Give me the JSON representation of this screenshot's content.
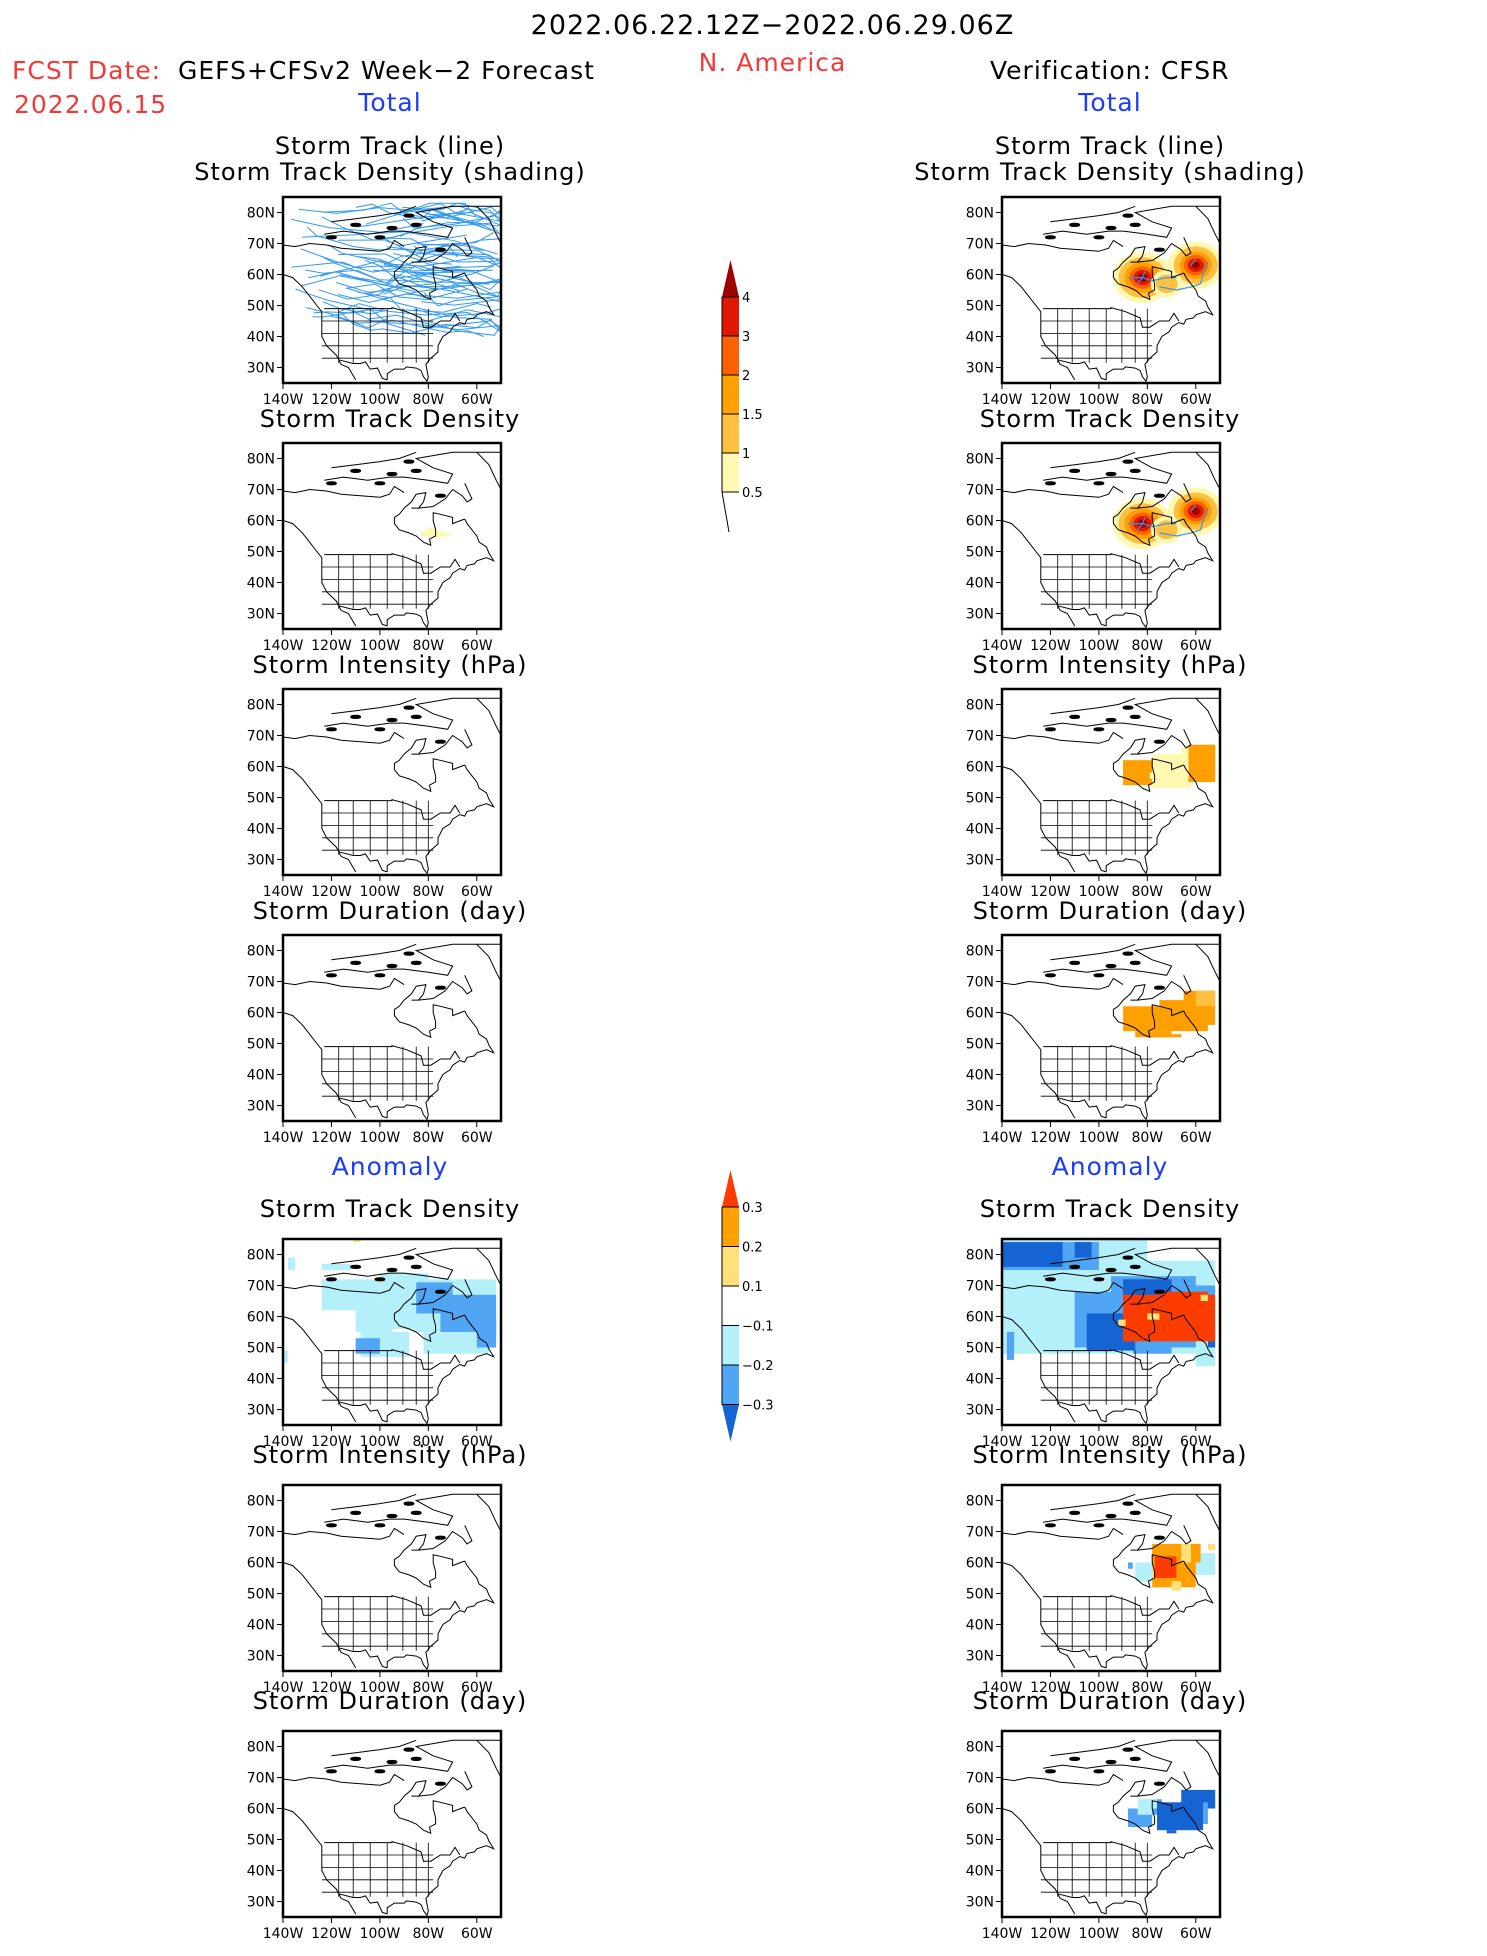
{
  "header": {
    "title": "2022.06.22.12Z−2022.06.29.06Z",
    "region": "N. America",
    "fcst_label": "FCST Date:",
    "fcst_model": "GEFS+CFSv2 Week−2 Forecast",
    "fcst_date": "2022.06.15",
    "verification": "Verification: CFSR"
  },
  "sections": {
    "total": "Total",
    "anomaly": "Anomaly"
  },
  "colors": {
    "track_line": "#3399ee",
    "section_text": "#1a3cff",
    "header_red": "#f03a3a"
  },
  "chart_data": [
    {
      "type": "heatmap",
      "panel": "forecast-total-track-density-with-tracks",
      "column": "forecast",
      "section": "Total",
      "title_line1": "Storm Track (line)",
      "title_line2": "Storm Track Density (shading)",
      "lat_ticks": [
        "80N",
        "70N",
        "60N",
        "50N",
        "40N",
        "30N"
      ],
      "lon_ticks": [
        "140W",
        "120W",
        "100W",
        "80W",
        "60W"
      ],
      "xlim": [
        -140,
        -50
      ],
      "ylim": [
        25,
        85
      ],
      "colorbar": "total",
      "shading": [
        {
          "lon": -80,
          "lat": 56,
          "level": 0.5,
          "extent": "small"
        }
      ],
      "tracks": "many storm tracks spanning 40N-82N, dense over Canada"
    },
    {
      "type": "heatmap",
      "panel": "forecast-total-track-density",
      "column": "forecast",
      "section": "Total",
      "title_line1": "Storm Track Density",
      "xlim": [
        -140,
        -50
      ],
      "ylim": [
        25,
        85
      ],
      "colorbar": "total",
      "shading": [
        {
          "lon": -79,
          "lat": 56,
          "level": 0.5
        }
      ]
    },
    {
      "type": "heatmap",
      "panel": "forecast-total-intensity",
      "column": "forecast",
      "section": "Total",
      "title_line1": "Storm Intensity (hPa)",
      "xlim": [
        -140,
        -50
      ],
      "ylim": [
        25,
        85
      ],
      "shading": []
    },
    {
      "type": "heatmap",
      "panel": "forecast-total-duration",
      "column": "forecast",
      "section": "Total",
      "title_line1": "Storm Duration (day)",
      "xlim": [
        -140,
        -50
      ],
      "ylim": [
        25,
        85
      ],
      "shading": []
    },
    {
      "type": "heatmap",
      "panel": "forecast-anomaly-track-density",
      "column": "forecast",
      "section": "Anomaly",
      "title_line1": "Storm Track Density",
      "xlim": [
        -140,
        -50
      ],
      "ylim": [
        25,
        85
      ],
      "colorbar": "anomaly",
      "shading": "negative anomalies (-0.1 to -0.2) over Canada and Hudson Bay/Labrador; -0.2 to -0.3 near Labrador and 50N 105W"
    },
    {
      "type": "heatmap",
      "panel": "forecast-anomaly-intensity",
      "column": "forecast",
      "section": "Anomaly",
      "title_line1": "Storm Intensity (hPa)",
      "xlim": [
        -140,
        -50
      ],
      "ylim": [
        25,
        85
      ],
      "shading": []
    },
    {
      "type": "heatmap",
      "panel": "forecast-anomaly-duration",
      "column": "forecast",
      "section": "Anomaly",
      "title_line1": "Storm Duration (day)",
      "xlim": [
        -140,
        -50
      ],
      "ylim": [
        25,
        85
      ],
      "shading": []
    },
    {
      "type": "heatmap",
      "panel": "verification-total-track-density-with-tracks",
      "column": "verification",
      "section": "Total",
      "title_line1": "Storm Track (line)",
      "title_line2": "Storm Track Density (shading)",
      "xlim": [
        -140,
        -50
      ],
      "ylim": [
        25,
        85
      ],
      "colorbar": "total",
      "shading": [
        {
          "lon": -82,
          "lat": 59,
          "peak": 4
        },
        {
          "lon": -60,
          "lat": 63,
          "peak": 4
        }
      ]
    },
    {
      "type": "heatmap",
      "panel": "verification-total-track-density",
      "column": "verification",
      "section": "Total",
      "title_line1": "Storm Track Density",
      "xlim": [
        -140,
        -50
      ],
      "ylim": [
        25,
        85
      ],
      "colorbar": "total",
      "shading": [
        {
          "lon": -82,
          "lat": 59,
          "peak": 4
        },
        {
          "lon": -60,
          "lat": 63,
          "peak": 4
        }
      ]
    },
    {
      "type": "heatmap",
      "panel": "verification-total-intensity",
      "column": "verification",
      "section": "Total",
      "title_line1": "Storm Intensity (hPa)",
      "xlim": [
        -140,
        -50
      ],
      "ylim": [
        25,
        85
      ],
      "shading": "1.5-2 over 55-62N 90-78W and 55-67N 62-52W; 0.5-1 between"
    },
    {
      "type": "heatmap",
      "panel": "verification-total-duration",
      "column": "verification",
      "section": "Total",
      "title_line1": "Storm Duration (day)",
      "xlim": [
        -140,
        -50
      ],
      "ylim": [
        25,
        85
      ],
      "shading": "1.5-2 over 53-66N 90-52W"
    },
    {
      "type": "heatmap",
      "panel": "verification-anomaly-track-density",
      "column": "verification",
      "section": "Anomaly",
      "title_line1": "Storm Track Density",
      "xlim": [
        -140,
        -50
      ],
      "ylim": [
        25,
        85
      ],
      "colorbar": "anomaly",
      "shading": ">0.3 over 52-67N 92-52W; < -0.3 over Arctic and central Canada; -0.1 to -0.2 widespread"
    },
    {
      "type": "heatmap",
      "panel": "verification-anomaly-intensity",
      "column": "verification",
      "section": "Anomaly",
      "title_line1": "Storm Intensity (hPa)",
      "xlim": [
        -140,
        -50
      ],
      "ylim": [
        25,
        85
      ],
      "shading": ">0.3 near 58-62N 77-68W; 0.2-0.3 surrounding; -0.1 to -0.2 near 55-60N 88-80W and 57-63N 57-52W"
    },
    {
      "type": "heatmap",
      "panel": "verification-anomaly-duration",
      "column": "verification",
      "section": "Anomaly",
      "title_line1": "Storm Duration (day)",
      "xlim": [
        -140,
        -50
      ],
      "ylim": [
        25,
        85
      ],
      "shading": "< -0.3 over 55-66N 75-57W; -0.2 to -0.3 over 54-61N 90-75W"
    }
  ],
  "colorbars": {
    "total": {
      "levels": [
        "0.5",
        "1",
        "1.5",
        "2",
        "3",
        "4"
      ],
      "colors": [
        "#fff8b0",
        "#ffc040",
        "#ffa000",
        "#ff6000",
        "#e01800",
        "#a00000"
      ]
    },
    "anomaly": {
      "levels": [
        "−0.3",
        "−0.2",
        "−0.1",
        "0.1",
        "0.2",
        "0.3"
      ],
      "colors": [
        "#1464d2",
        "#50a5f5",
        "#b4f0fa",
        "#ffffff",
        "#ffe178",
        "#ffa000",
        "#ff3c00"
      ]
    }
  },
  "axes": {
    "lat_ticks": [
      "80N",
      "70N",
      "60N",
      "50N",
      "40N",
      "30N"
    ],
    "lon_ticks": [
      "140W",
      "120W",
      "100W",
      "80W",
      "60W"
    ]
  }
}
